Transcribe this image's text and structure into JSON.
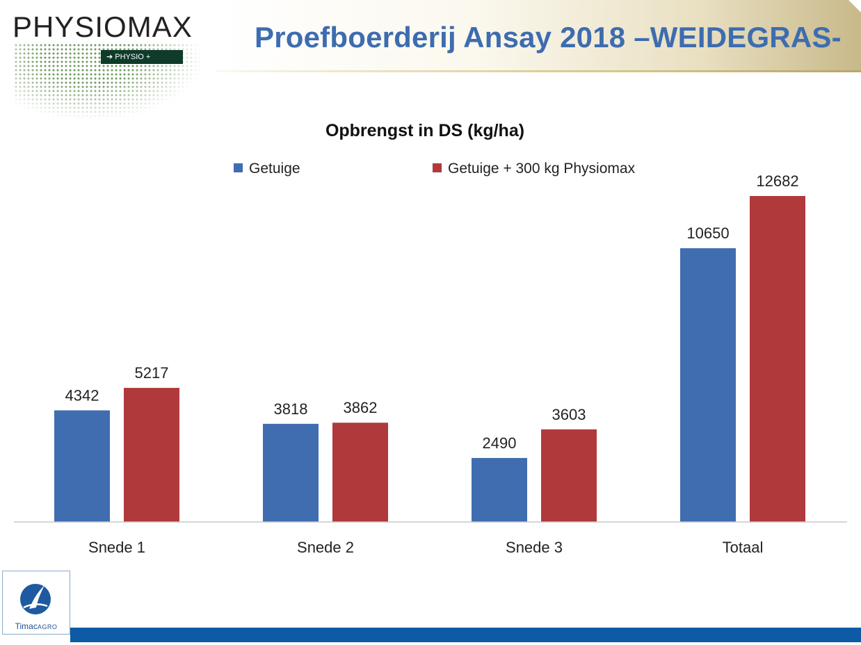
{
  "header": {
    "title": "Proefboerderij Ansay 2018 –WEIDEGRAS-",
    "logo_text": "PHYSIOMAX",
    "logo_tagline": "➔ PHYSIO +"
  },
  "footer": {
    "brand_main": "Timac",
    "brand_sub": "AGRO"
  },
  "colors": {
    "title": "#3d6cb0",
    "series_getuige": "#3f6db0",
    "series_physiomax": "#b0393b",
    "footer_bar": "#0d5aa7"
  },
  "chart_data": {
    "type": "bar",
    "title": "Opbrengst in DS (kg/ha)",
    "categories": [
      "Snede 1",
      "Snede 2",
      "Snede 3",
      "Totaal"
    ],
    "series": [
      {
        "name": "Getuige",
        "values": [
          4342,
          3818,
          2490,
          10650
        ],
        "color": "#3f6db0"
      },
      {
        "name": "Getuige + 300 kg Physiomax",
        "values": [
          5217,
          3862,
          3603,
          12682
        ],
        "color": "#b0393b"
      }
    ],
    "xlabel": "",
    "ylabel": "",
    "ylim": [
      0,
      12682
    ],
    "grid": false,
    "legend_position": "top",
    "data_labels": true
  }
}
